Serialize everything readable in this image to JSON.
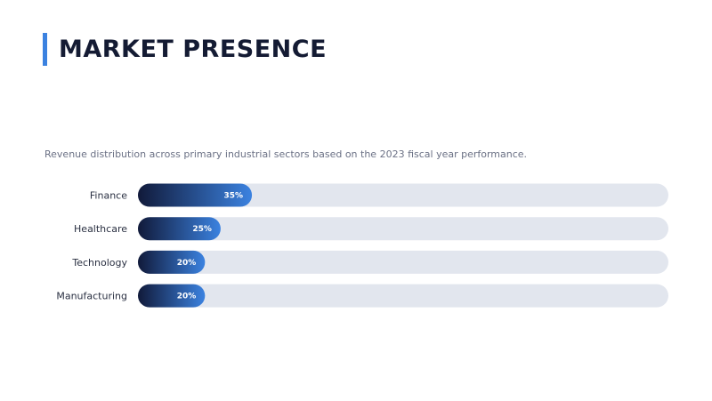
{
  "slide": {
    "title": "MARKET PRESENCE",
    "subtitle": "Revenue distribution across primary industrial sectors based on the 2023 fiscal year performance."
  },
  "colors": {
    "accent": "#3b82e0",
    "bar_gradient_start": "#111a3a",
    "bar_gradient_end": "#3b82e0",
    "track": "#e2e6ee",
    "title": "#141b33"
  },
  "chart_data": {
    "type": "bar",
    "orientation": "horizontal",
    "categories": [
      "Finance",
      "Healthcare",
      "Technology",
      "Manufacturing"
    ],
    "values": [
      35,
      25,
      20,
      20
    ],
    "value_labels": [
      "35%",
      "25%",
      "20%",
      "20%"
    ],
    "unit": "%",
    "xlim": [
      0,
      100
    ],
    "grid": false,
    "legend": "none"
  }
}
